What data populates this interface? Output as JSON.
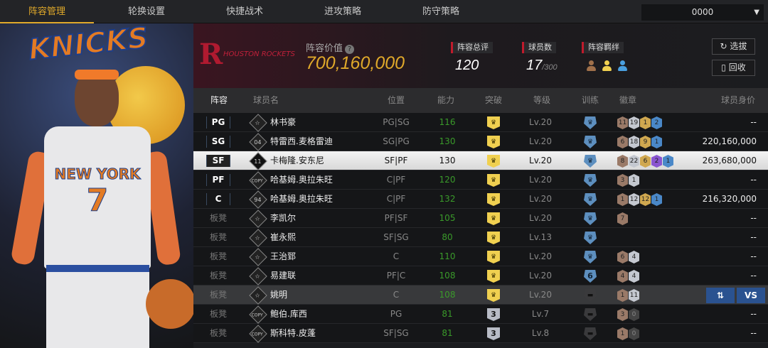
{
  "nav": {
    "tabs": [
      "阵容管理",
      "轮换设置",
      "快捷战术",
      "进攻策略",
      "防守策略"
    ],
    "active": 0,
    "account": "0000"
  },
  "player_art": {
    "logo_text": "KNICKS",
    "jersey_team": "NEW YORK",
    "jersey_number": "7"
  },
  "header": {
    "team_logo_text": "HOUSTON ROCKETS",
    "value_label": "阵容价值",
    "value": "700,160,000",
    "stats": [
      {
        "label": "阵容总评",
        "value": "120"
      },
      {
        "label": "球员数",
        "value": "17",
        "max": "/300"
      },
      {
        "label": "阵容羁绊"
      }
    ],
    "bond_colors": [
      "#a0704a",
      "#f0d050",
      "#4aa0e0"
    ],
    "buttons": {
      "select": "选拔",
      "recycle": "回收"
    }
  },
  "columns": [
    "阵容",
    "球员名",
    "位置",
    "能力",
    "突破",
    "等级",
    "训练",
    "徽章",
    "球员身价"
  ],
  "badge_colors": {
    "bronze": "#9a7a68",
    "silver": "#c4c8d0",
    "gold": "#d0a850",
    "purple": "#8a55d0",
    "blue": "#4a88c8",
    "empty": "#444"
  },
  "rows": [
    {
      "slot": "PG",
      "icon": "☆",
      "name": "林书豪",
      "pos": "PG|SG",
      "ability": "116",
      "brk": "crown",
      "level": "Lv.20",
      "train": "crown",
      "badges": [
        [
          "bronze",
          "11"
        ],
        [
          "silver",
          "19"
        ],
        [
          "gold",
          "1"
        ],
        [
          "blue",
          "2"
        ]
      ],
      "value": "--"
    },
    {
      "slot": "SG",
      "icon": "04",
      "name": "特雷西.麦格雷迪",
      "pos": "SG|PG",
      "ability": "130",
      "brk": "crown",
      "level": "Lv.20",
      "train": "crown",
      "badges": [
        [
          "bronze",
          "6"
        ],
        [
          "silver",
          "18"
        ],
        [
          "gold",
          "9"
        ],
        [
          "blue",
          "1"
        ]
      ],
      "value": "220,160,000"
    },
    {
      "slot": "SF",
      "icon": "11",
      "name": "卡梅隆.安东尼",
      "pos": "SF|PF",
      "ability": "130",
      "brk": "crown",
      "level": "Lv.20",
      "train": "crown",
      "badges": [
        [
          "bronze",
          "8"
        ],
        [
          "silver",
          "22"
        ],
        [
          "gold",
          "6"
        ],
        [
          "purple",
          "2"
        ],
        [
          "blue",
          "1"
        ]
      ],
      "value": "263,680,000",
      "selected": true
    },
    {
      "slot": "PF",
      "icon": "COPY",
      "name": "哈基姆.奥拉朱旺",
      "pos": "C|PF",
      "ability": "120",
      "brk": "crown",
      "level": "Lv.20",
      "train": "crown",
      "badges": [
        [
          "bronze",
          "3"
        ],
        [
          "silver",
          "1"
        ]
      ],
      "value": "--"
    },
    {
      "slot": "C",
      "icon": "94",
      "name": "哈基姆.奥拉朱旺",
      "pos": "C|PF",
      "ability": "132",
      "brk": "crown",
      "level": "Lv.20",
      "train": "crown",
      "badges": [
        [
          "bronze",
          "1"
        ],
        [
          "silver",
          "12"
        ],
        [
          "gold",
          "12"
        ],
        [
          "blue",
          "1"
        ]
      ],
      "value": "216,320,000"
    },
    {
      "slot": "板凳",
      "icon": "☆",
      "name": "李凯尔",
      "pos": "PF|SF",
      "ability": "105",
      "brk": "crown",
      "level": "Lv.20",
      "train": "crown",
      "badges": [
        [
          "bronze",
          "7"
        ]
      ],
      "value": "--"
    },
    {
      "slot": "板凳",
      "icon": "☆",
      "name": "崔永熙",
      "pos": "SF|SG",
      "ability": "80",
      "brk": "crown",
      "level": "Lv.13",
      "train": "crown",
      "badges": [],
      "value": "--"
    },
    {
      "slot": "板凳",
      "icon": "☆",
      "name": "王治郅",
      "pos": "C",
      "ability": "110",
      "brk": "crown",
      "level": "Lv.20",
      "train": "crown",
      "badges": [
        [
          "bronze",
          "6"
        ],
        [
          "silver",
          "4"
        ]
      ],
      "value": "--"
    },
    {
      "slot": "板凳",
      "icon": "☆",
      "name": "易建联",
      "pos": "PF|C",
      "ability": "108",
      "brk": "crown",
      "level": "Lv.20",
      "train": "6",
      "badges": [
        [
          "bronze",
          "4"
        ],
        [
          "silver",
          "4"
        ]
      ],
      "value": "--"
    },
    {
      "slot": "板凳",
      "icon": "☆",
      "name": "姚明",
      "pos": "C",
      "ability": "108",
      "brk": "crown",
      "level": "Lv.20",
      "train": "none",
      "badges": [
        [
          "bronze",
          "1"
        ],
        [
          "silver",
          "11"
        ]
      ],
      "value": "",
      "hover": true,
      "actions": [
        "⇅",
        "VS"
      ]
    },
    {
      "slot": "板凳",
      "icon": "COPY",
      "name": "鲍伯.库西",
      "pos": "PG",
      "ability": "81",
      "brk": "3",
      "level": "Lv.7",
      "train": "none",
      "badges": [
        [
          "bronze",
          "3"
        ],
        [
          "empty",
          "0"
        ]
      ],
      "value": "--"
    },
    {
      "slot": "板凳",
      "icon": "COPY",
      "name": "斯科特.皮蓬",
      "pos": "SF|SG",
      "ability": "81",
      "brk": "3",
      "level": "Lv.8",
      "train": "none",
      "badges": [
        [
          "bronze",
          "1"
        ],
        [
          "empty",
          "0"
        ]
      ],
      "value": "--"
    }
  ]
}
